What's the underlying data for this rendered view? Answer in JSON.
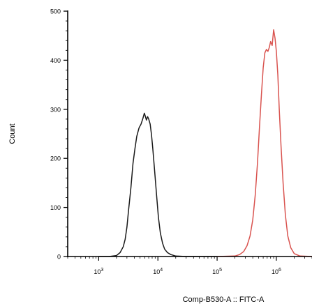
{
  "chart_data": {
    "type": "line",
    "title": "",
    "xlabel": "Comp-B530-A :: FITC-A",
    "ylabel": "Count",
    "x_scale": "log10",
    "xlim": [
      300,
      4000000
    ],
    "ylim": [
      0,
      500
    ],
    "y_ticks": [
      0,
      100,
      200,
      300,
      400,
      500
    ],
    "x_decades": [
      {
        "base": "10",
        "exp": "3"
      },
      {
        "base": "10",
        "exp": "4"
      },
      {
        "base": "10",
        "exp": "5"
      },
      {
        "base": "10",
        "exp": "6"
      }
    ],
    "x_decade_values": [
      1000,
      10000,
      100000,
      1000000
    ],
    "grid": false,
    "legend": "none",
    "series": [
      {
        "color": "#1a1a1a",
        "x": [
          1000,
          1500,
          2000,
          2300,
          2600,
          2800,
          3000,
          3200,
          3500,
          3800,
          4100,
          4400,
          4800,
          5200,
          5600,
          5900,
          6100,
          6400,
          6700,
          7000,
          7400,
          7800,
          8200,
          8800,
          9500,
          10200,
          11000,
          12000,
          13000,
          14500,
          16500,
          20000,
          30000,
          100000
        ],
        "y": [
          0,
          0,
          2,
          8,
          20,
          35,
          60,
          95,
          140,
          190,
          220,
          245,
          262,
          270,
          282,
          292,
          287,
          278,
          285,
          280,
          270,
          248,
          220,
          175,
          125,
          80,
          48,
          27,
          15,
          8,
          4,
          1,
          0,
          0
        ]
      },
      {
        "color": "#d9534f",
        "x": [
          100000,
          200000,
          240000,
          280000,
          320000,
          360000,
          400000,
          440000,
          480000,
          520000,
          560000,
          600000,
          640000,
          680000,
          720000,
          760000,
          800000,
          850000,
          900000,
          950000,
          1000000,
          1060000,
          1120000,
          1200000,
          1300000,
          1420000,
          1560000,
          1750000,
          2000000,
          2500000,
          4000000
        ],
        "y": [
          0,
          1,
          4,
          10,
          22,
          42,
          75,
          125,
          190,
          265,
          330,
          385,
          415,
          422,
          418,
          426,
          438,
          430,
          462,
          445,
          418,
          370,
          300,
          225,
          150,
          85,
          42,
          18,
          6,
          1,
          0
        ]
      }
    ]
  }
}
